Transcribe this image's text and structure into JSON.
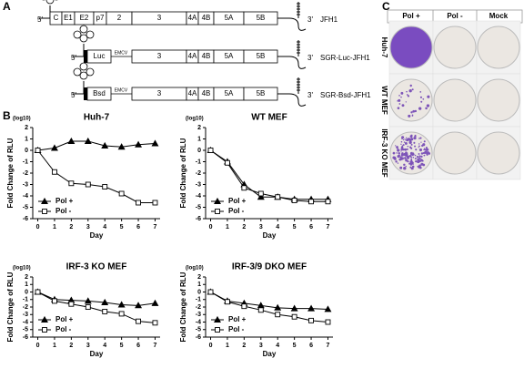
{
  "panel_a": {
    "label": "A",
    "constructs": [
      {
        "name": "JFH1",
        "five_prime": "5'",
        "three_prime": "3'",
        "segments": [
          "C",
          "E1",
          "E2",
          "p7",
          "2",
          "3",
          "4A",
          "4B",
          "5A",
          "5B"
        ]
      },
      {
        "name": "SGR-Luc-JFH1",
        "five_prime": "5'",
        "three_prime": "3'",
        "reporter": "Luc",
        "ires": "EMCV",
        "segments": [
          "3",
          "4A",
          "4B",
          "5A",
          "5B"
        ]
      },
      {
        "name": "SGR-Bsd-JFH1",
        "five_prime": "5'",
        "three_prime": "3'",
        "reporter": "Bsd",
        "ires": "EMCV",
        "segments": [
          "3",
          "4A",
          "4B",
          "5A",
          "5B"
        ]
      }
    ]
  },
  "panel_b": {
    "label": "B"
  },
  "panel_c": {
    "label": "C",
    "columns": [
      "Pol +",
      "Pol -",
      "Mock"
    ],
    "rows": [
      "Huh-7",
      "WT MEF",
      "IRF-3 KO MEF"
    ]
  },
  "chart_data": [
    {
      "type": "line",
      "title": "Huh-7",
      "x_label": "Day",
      "y_label": "Fold Change of RLU",
      "y_unit": "(log10)",
      "x": [
        0,
        1,
        2,
        3,
        4,
        5,
        6,
        7
      ],
      "xlim": [
        -0.3,
        7.3
      ],
      "xticks": [
        0,
        1,
        2,
        3,
        4,
        5,
        6,
        7
      ],
      "ylim": [
        -6,
        2
      ],
      "yticks": [
        -6,
        -5,
        -4,
        -3,
        -2,
        -1,
        0,
        1,
        2
      ],
      "legend": "lower left",
      "series": [
        {
          "name": "Pol +",
          "color": "#000000",
          "marker": "triangle",
          "filled": true,
          "values": [
            0,
            0.2,
            0.8,
            0.8,
            0.4,
            0.3,
            0.5,
            0.6
          ]
        },
        {
          "name": "Pol -",
          "color": "#000000",
          "marker": "square",
          "filled": false,
          "values": [
            0,
            -1.9,
            -2.9,
            -3.0,
            -3.2,
            -3.8,
            -4.6,
            -4.6
          ]
        }
      ]
    },
    {
      "type": "line",
      "title": "WT MEF",
      "x_label": "Day",
      "y_label": "Fold Change of RLU",
      "y_unit": "(log10)",
      "x": [
        0,
        1,
        2,
        3,
        4,
        5,
        6,
        7
      ],
      "xlim": [
        -0.3,
        7.3
      ],
      "xticks": [
        0,
        1,
        2,
        3,
        4,
        5,
        6,
        7
      ],
      "ylim": [
        -6,
        2
      ],
      "yticks": [
        -6,
        -5,
        -4,
        -3,
        -2,
        -1,
        0,
        1,
        2
      ],
      "legend": "lower left",
      "series": [
        {
          "name": "Pol +",
          "color": "#000000",
          "marker": "triangle",
          "filled": true,
          "values": [
            0,
            -1.0,
            -3.0,
            -4.1,
            -4.1,
            -4.3,
            -4.3,
            -4.3
          ]
        },
        {
          "name": "Pol -",
          "color": "#000000",
          "marker": "square",
          "filled": false,
          "values": [
            0,
            -1.1,
            -3.3,
            -3.8,
            -4.1,
            -4.4,
            -4.5,
            -4.5
          ]
        }
      ]
    },
    {
      "type": "line",
      "title": "IRF-3 KO MEF",
      "x_label": "Day",
      "y_label": "Fold Change of RLU",
      "y_unit": "(log10)",
      "x": [
        0,
        1,
        2,
        3,
        4,
        5,
        6,
        7
      ],
      "xlim": [
        -0.3,
        7.3
      ],
      "xticks": [
        0,
        1,
        2,
        3,
        4,
        5,
        6,
        7
      ],
      "ylim": [
        -6,
        2
      ],
      "yticks": [
        -6,
        -5,
        -4,
        -3,
        -2,
        -1,
        0,
        1,
        2
      ],
      "legend": "lower left",
      "series": [
        {
          "name": "Pol +",
          "color": "#000000",
          "marker": "triangle",
          "filled": true,
          "values": [
            0,
            -1.0,
            -1.1,
            -1.2,
            -1.4,
            -1.7,
            -1.8,
            -1.5
          ]
        },
        {
          "name": "Pol -",
          "color": "#000000",
          "marker": "square",
          "filled": false,
          "values": [
            0,
            -1.2,
            -1.6,
            -2.0,
            -2.6,
            -2.9,
            -3.9,
            -4.1
          ]
        }
      ]
    },
    {
      "type": "line",
      "title": "IRF-3/9 DKO MEF",
      "x_label": "Day",
      "y_label": "Fold Change of RLU",
      "y_unit": "(log10)",
      "x": [
        0,
        1,
        2,
        3,
        4,
        5,
        6,
        7
      ],
      "xlim": [
        -0.3,
        7.3
      ],
      "xticks": [
        0,
        1,
        2,
        3,
        4,
        5,
        6,
        7
      ],
      "ylim": [
        -6,
        2
      ],
      "yticks": [
        -6,
        -5,
        -4,
        -3,
        -2,
        -1,
        0,
        1,
        2
      ],
      "legend": "lower left",
      "series": [
        {
          "name": "Pol +",
          "color": "#000000",
          "marker": "triangle",
          "filled": true,
          "values": [
            0,
            -1.2,
            -1.5,
            -1.8,
            -2.1,
            -2.2,
            -2.2,
            -2.3
          ]
        },
        {
          "name": "Pol -",
          "color": "#000000",
          "marker": "square",
          "filled": false,
          "values": [
            0,
            -1.3,
            -1.9,
            -2.4,
            -3.0,
            -3.3,
            -3.8,
            -4.0
          ]
        }
      ]
    }
  ]
}
